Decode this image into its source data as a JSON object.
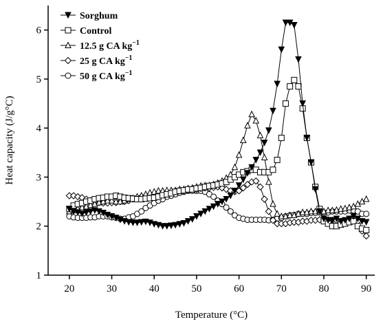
{
  "chart_data": {
    "type": "line",
    "xlabel": "Temperature (°C)",
    "ylabel": "Heat capacity (J/g°C)",
    "xlim": [
      15,
      92
    ],
    "ylim": [
      1,
      6.5
    ],
    "xticks": [
      20,
      30,
      40,
      50,
      60,
      70,
      80,
      90
    ],
    "yticks": [
      1,
      2,
      3,
      4,
      5,
      6
    ],
    "grid": false,
    "legend": "top-left",
    "series": [
      {
        "name": "Sorghum",
        "marker": "triangle-down-filled",
        "x": [
          20,
          21,
          22,
          23,
          24,
          25,
          26,
          27,
          28,
          29,
          30,
          31,
          32,
          33,
          34,
          35,
          36,
          37,
          38,
          39,
          40,
          41,
          42,
          43,
          44,
          45,
          46,
          47,
          48,
          49,
          50,
          51,
          52,
          53,
          54,
          55,
          56,
          57,
          58,
          59,
          60,
          61,
          62,
          63,
          64,
          65,
          66,
          67,
          68,
          69,
          70,
          71,
          72,
          73,
          74,
          75,
          76,
          77,
          78,
          79,
          80,
          81,
          82,
          83,
          84,
          85,
          86,
          87,
          88,
          89,
          90
        ],
        "y": [
          2.35,
          2.3,
          2.28,
          2.25,
          2.28,
          2.3,
          2.32,
          2.3,
          2.27,
          2.23,
          2.2,
          2.17,
          2.13,
          2.1,
          2.08,
          2.07,
          2.07,
          2.08,
          2.09,
          2.07,
          2.04,
          2.02,
          2.0,
          2.0,
          2.01,
          2.02,
          2.04,
          2.06,
          2.1,
          2.14,
          2.2,
          2.25,
          2.3,
          2.35,
          2.4,
          2.45,
          2.5,
          2.55,
          2.62,
          2.72,
          2.83,
          2.95,
          3.08,
          3.2,
          3.35,
          3.5,
          3.7,
          3.95,
          4.35,
          4.9,
          5.6,
          6.15,
          6.15,
          6.1,
          5.4,
          4.5,
          3.8,
          3.3,
          2.75,
          2.3,
          2.15,
          2.12,
          2.12,
          2.15,
          2.1,
          2.12,
          2.15,
          2.2,
          2.15,
          2.1,
          2.08
        ]
      },
      {
        "name": "Control",
        "marker": "square-open",
        "x": [
          20,
          21,
          22,
          23,
          24,
          25,
          26,
          27,
          28,
          29,
          30,
          31,
          32,
          33,
          34,
          35,
          36,
          37,
          38,
          39,
          40,
          41,
          42,
          43,
          44,
          45,
          46,
          47,
          48,
          49,
          50,
          51,
          52,
          53,
          54,
          55,
          56,
          57,
          58,
          59,
          60,
          61,
          62,
          63,
          64,
          65,
          66,
          67,
          68,
          69,
          70,
          71,
          72,
          73,
          74,
          75,
          76,
          77,
          78,
          79,
          80,
          81,
          82,
          83,
          84,
          85,
          86,
          87,
          88,
          89,
          90
        ],
        "y": [
          2.35,
          2.42,
          2.45,
          2.47,
          2.5,
          2.52,
          2.55,
          2.57,
          2.58,
          2.6,
          2.6,
          2.62,
          2.6,
          2.58,
          2.57,
          2.56,
          2.55,
          2.55,
          2.56,
          2.57,
          2.58,
          2.6,
          2.63,
          2.65,
          2.67,
          2.7,
          2.72,
          2.73,
          2.75,
          2.75,
          2.77,
          2.78,
          2.8,
          2.82,
          2.83,
          2.85,
          2.87,
          2.9,
          2.95,
          3.0,
          3.05,
          3.1,
          3.12,
          3.15,
          3.15,
          3.1,
          3.1,
          3.1,
          3.15,
          3.35,
          3.8,
          4.5,
          4.85,
          4.98,
          4.85,
          4.4,
          3.8,
          3.3,
          2.8,
          2.35,
          2.1,
          2.05,
          2.0,
          2.0,
          2.03,
          2.05,
          2.08,
          2.1,
          2.0,
          1.95,
          1.92
        ]
      },
      {
        "name": "12.5 g CA kg⁻¹",
        "marker": "triangle-up-open",
        "x": [
          20,
          21,
          22,
          23,
          24,
          25,
          26,
          27,
          28,
          29,
          30,
          31,
          32,
          33,
          34,
          35,
          36,
          37,
          38,
          39,
          40,
          41,
          42,
          43,
          44,
          45,
          46,
          47,
          48,
          49,
          50,
          51,
          52,
          53,
          54,
          55,
          56,
          57,
          58,
          59,
          60,
          61,
          62,
          63,
          64,
          65,
          66,
          67,
          68,
          69,
          70,
          71,
          72,
          73,
          74,
          75,
          76,
          77,
          78,
          79,
          80,
          81,
          82,
          83,
          84,
          85,
          86,
          87,
          88,
          89,
          90
        ],
        "y": [
          2.3,
          2.32,
          2.35,
          2.38,
          2.4,
          2.43,
          2.45,
          2.48,
          2.5,
          2.52,
          2.52,
          2.5,
          2.5,
          2.52,
          2.55,
          2.57,
          2.6,
          2.62,
          2.65,
          2.68,
          2.7,
          2.72,
          2.72,
          2.73,
          2.73,
          2.73,
          2.75,
          2.75,
          2.77,
          2.78,
          2.8,
          2.82,
          2.83,
          2.83,
          2.85,
          2.88,
          2.92,
          2.98,
          3.05,
          3.2,
          3.45,
          3.75,
          4.05,
          4.28,
          4.15,
          3.85,
          3.4,
          2.9,
          2.45,
          2.25,
          2.2,
          2.2,
          2.22,
          2.22,
          2.25,
          2.28,
          2.28,
          2.3,
          2.3,
          2.32,
          2.3,
          2.32,
          2.32,
          2.33,
          2.35,
          2.36,
          2.38,
          2.4,
          2.45,
          2.5,
          2.55
        ]
      },
      {
        "name": "25 g CA kg⁻¹",
        "marker": "diamond-open",
        "x": [
          20,
          21,
          22,
          23,
          24,
          25,
          26,
          27,
          28,
          29,
          30,
          31,
          32,
          33,
          34,
          35,
          36,
          37,
          38,
          39,
          40,
          41,
          42,
          43,
          44,
          45,
          46,
          47,
          48,
          49,
          50,
          51,
          52,
          53,
          54,
          55,
          56,
          57,
          58,
          59,
          60,
          61,
          62,
          63,
          64,
          65,
          66,
          67,
          68,
          69,
          70,
          71,
          72,
          73,
          74,
          75,
          76,
          77,
          78,
          79,
          80,
          81,
          82,
          83,
          84,
          85,
          86,
          87,
          88,
          89,
          90
        ],
        "y": [
          2.62,
          2.62,
          2.6,
          2.58,
          2.55,
          2.52,
          2.5,
          2.48,
          2.47,
          2.47,
          2.48,
          2.48,
          2.5,
          2.5,
          2.52,
          2.55,
          2.58,
          2.6,
          2.62,
          2.63,
          2.64,
          2.65,
          2.67,
          2.68,
          2.7,
          2.7,
          2.72,
          2.72,
          2.74,
          2.75,
          2.75,
          2.77,
          2.78,
          2.78,
          2.79,
          2.8,
          2.78,
          2.75,
          2.72,
          2.7,
          2.72,
          2.78,
          2.85,
          2.9,
          2.92,
          2.8,
          2.55,
          2.3,
          2.12,
          2.05,
          2.05,
          2.05,
          2.07,
          2.08,
          2.08,
          2.1,
          2.1,
          2.12,
          2.12,
          2.13,
          2.13,
          2.13,
          2.12,
          2.12,
          2.1,
          2.1,
          2.12,
          2.12,
          2.1,
          1.9,
          1.8
        ]
      },
      {
        "name": "50 g CA kg⁻¹",
        "marker": "circle-open",
        "x": [
          20,
          21,
          22,
          23,
          24,
          25,
          26,
          27,
          28,
          29,
          30,
          31,
          32,
          33,
          34,
          35,
          36,
          37,
          38,
          39,
          40,
          41,
          42,
          43,
          44,
          45,
          46,
          47,
          48,
          49,
          50,
          51,
          52,
          53,
          54,
          55,
          56,
          57,
          58,
          59,
          60,
          61,
          62,
          63,
          64,
          65,
          66,
          67,
          68,
          69,
          70,
          71,
          72,
          73,
          74,
          75,
          76,
          77,
          78,
          79,
          80,
          81,
          82,
          83,
          84,
          85,
          86,
          87,
          88,
          89,
          90
        ],
        "y": [
          2.2,
          2.18,
          2.17,
          2.17,
          2.17,
          2.18,
          2.18,
          2.2,
          2.2,
          2.2,
          2.18,
          2.17,
          2.15,
          2.15,
          2.18,
          2.2,
          2.25,
          2.3,
          2.37,
          2.42,
          2.47,
          2.52,
          2.55,
          2.6,
          2.62,
          2.65,
          2.68,
          2.7,
          2.72,
          2.72,
          2.72,
          2.72,
          2.7,
          2.65,
          2.6,
          2.52,
          2.45,
          2.38,
          2.3,
          2.22,
          2.17,
          2.15,
          2.13,
          2.13,
          2.13,
          2.13,
          2.13,
          2.12,
          2.13,
          2.15,
          2.17,
          2.2,
          2.22,
          2.23,
          2.25,
          2.25,
          2.25,
          2.27,
          2.27,
          2.28,
          2.28,
          2.28,
          2.3,
          2.3,
          2.3,
          2.3,
          2.32,
          2.32,
          2.3,
          2.25,
          2.25
        ]
      }
    ]
  }
}
